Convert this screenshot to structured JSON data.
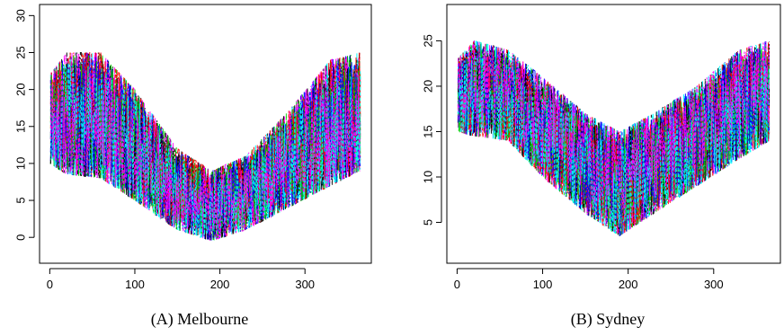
{
  "chart_data": [
    {
      "type": "line",
      "caption_label": "(A)",
      "caption_text": "Melbourne",
      "x_ticks": [
        0,
        100,
        200,
        300
      ],
      "y_ticks": [
        0,
        5,
        10,
        15,
        20,
        25,
        30
      ],
      "xlim": [
        -12,
        378
      ],
      "ylim": [
        -3.5,
        31.5
      ],
      "n_days": 365,
      "n_series": 30,
      "series_colors": [
        "#000000",
        "#ff0000",
        "#00cd00",
        "#0000ff",
        "#00ffff",
        "#ff00ff"
      ],
      "profile": {
        "x": [
          0,
          20,
          60,
          100,
          150,
          190,
          230,
          280,
          330,
          365
        ],
        "lower": [
          10,
          8.5,
          8,
          5,
          1,
          -0.5,
          1,
          4,
          7,
          9
        ],
        "upper": [
          22,
          25,
          25,
          20,
          12,
          9,
          11,
          17,
          24,
          25
        ]
      }
    },
    {
      "type": "line",
      "caption_label": "(B)",
      "caption_text": "Sydney",
      "x_ticks": [
        0,
        100,
        200,
        300
      ],
      "y_ticks": [
        5,
        10,
        15,
        20,
        25
      ],
      "xlim": [
        -12,
        378
      ],
      "ylim": [
        0.5,
        29
      ],
      "n_days": 365,
      "n_series": 30,
      "series_colors": [
        "#000000",
        "#ff0000",
        "#00cd00",
        "#0000ff",
        "#00ffff",
        "#ff00ff"
      ],
      "profile": {
        "x": [
          0,
          20,
          60,
          100,
          150,
          190,
          230,
          280,
          330,
          365
        ],
        "lower": [
          15,
          14.5,
          14,
          10,
          6,
          3.5,
          6,
          9,
          12,
          14
        ],
        "upper": [
          23,
          25,
          24,
          21,
          17,
          15,
          17,
          20,
          24,
          25
        ]
      }
    }
  ]
}
